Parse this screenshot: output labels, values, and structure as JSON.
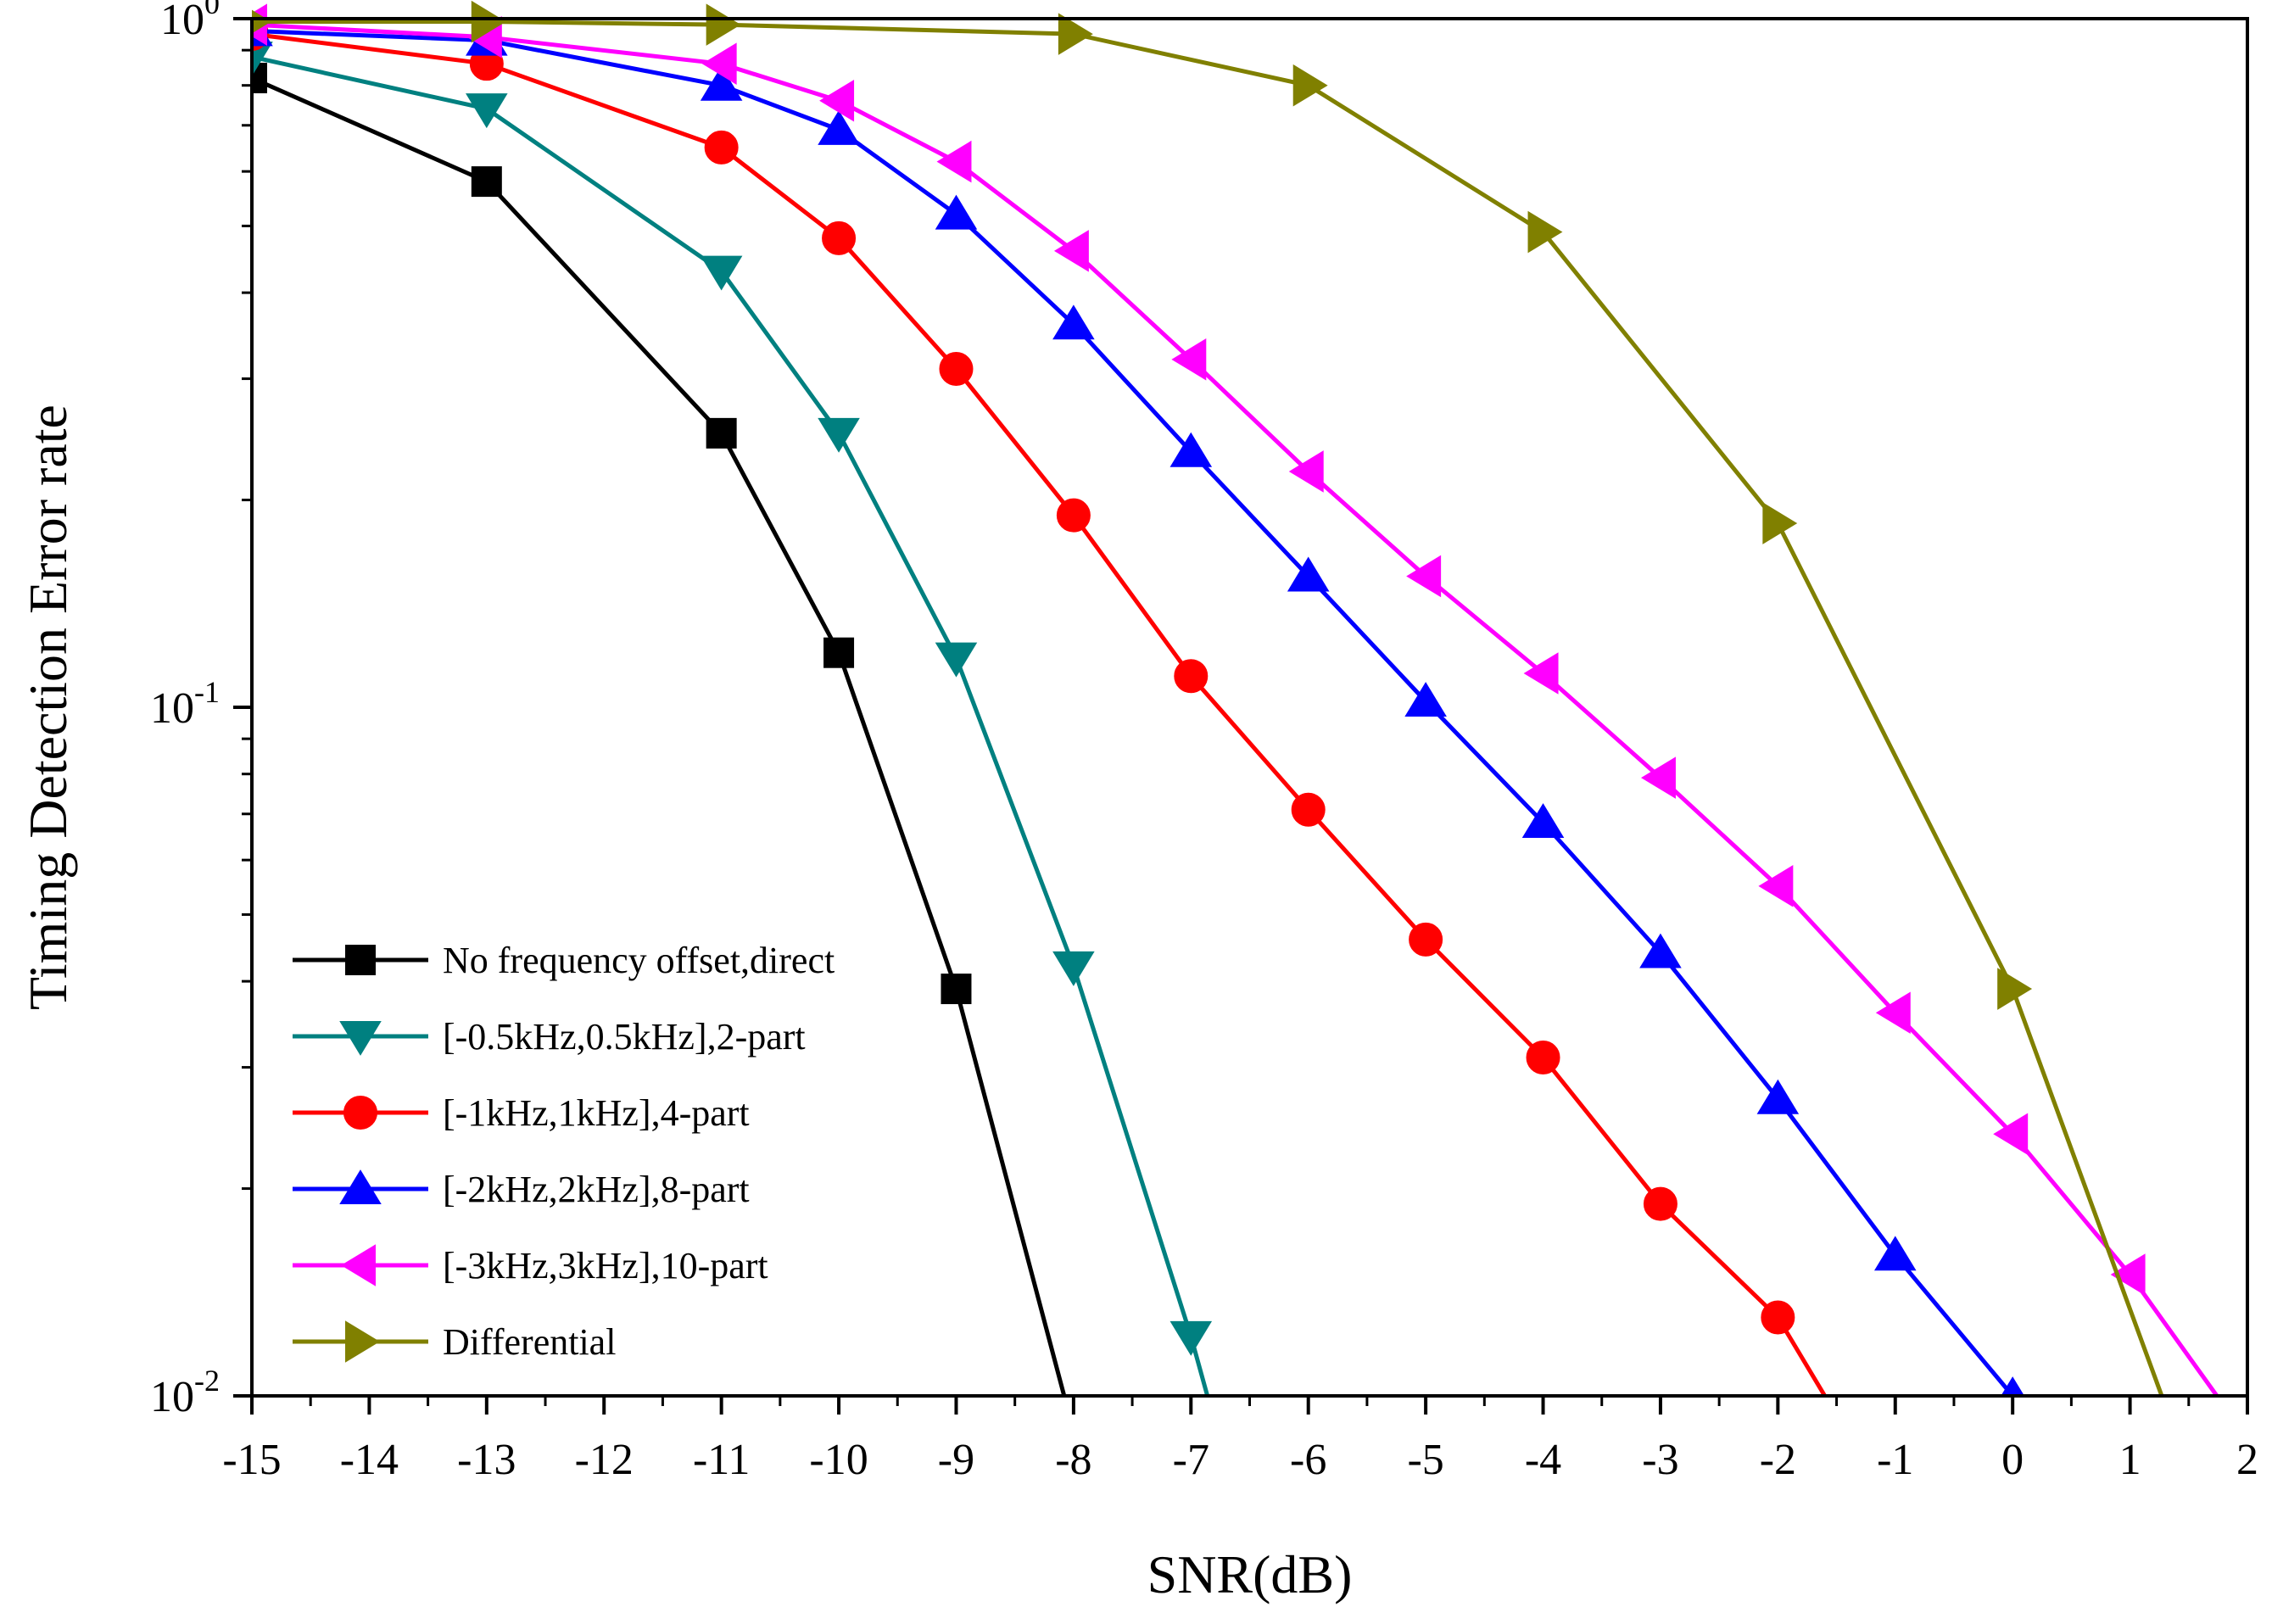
{
  "chart_data": {
    "type": "line",
    "title": "",
    "xlabel": "SNR(dB)",
    "ylabel": "Timing Detection Error rate",
    "xlim": [
      -15,
      2
    ],
    "ylim": [
      0.01,
      1
    ],
    "yscale": "log",
    "grid": false,
    "legend_position": "bottom-left",
    "x_ticks": [
      -15,
      -14,
      -13,
      -12,
      -11,
      -10,
      -9,
      -8,
      -7,
      -6,
      -5,
      -4,
      -3,
      -2,
      -1,
      0,
      1,
      2
    ],
    "x_tick_labels": [
      "-15",
      "-14",
      "-13",
      "-12",
      "-11",
      "-10",
      "-9",
      "-8",
      "-7",
      "-6",
      "-5",
      "-4",
      "-3",
      "-2",
      "-1",
      "0",
      "1",
      "2"
    ],
    "y_ticks": [
      {
        "value": 1,
        "base": "10",
        "exp": "0"
      },
      {
        "value": 0.1,
        "base": "10",
        "exp": "-1"
      },
      {
        "value": 0.01,
        "base": "10",
        "exp": "-2"
      }
    ],
    "series": [
      {
        "name": "No frequency offset,direct",
        "color": "#000000",
        "marker": "square",
        "x": [
          -15,
          -13,
          -11,
          -10,
          -9,
          -8.08
        ],
        "y": [
          0.82,
          0.58,
          0.25,
          0.12,
          0.039,
          0.01
        ]
      },
      {
        "name": "[-0.5kHz,0.5kHz],2-part",
        "color": "#008080",
        "marker": "triangle-down",
        "x": [
          -15,
          -13,
          -11,
          -10,
          -9,
          -8,
          -7,
          -6.86
        ],
        "y": [
          0.88,
          0.74,
          0.43,
          0.25,
          0.118,
          0.042,
          0.0122,
          0.01
        ]
      },
      {
        "name": "[-1kHz,1kHz],4-part",
        "color": "#ff0000",
        "marker": "circle",
        "x": [
          -15,
          -13,
          -11,
          -10,
          -9,
          -8,
          -7,
          -6,
          -5,
          -4,
          -3,
          -2,
          -1.6
        ],
        "y": [
          0.95,
          0.86,
          0.65,
          0.48,
          0.31,
          0.19,
          0.111,
          0.071,
          0.046,
          0.031,
          0.019,
          0.013,
          0.01
        ]
      },
      {
        "name": "[-2kHz,2kHz],8-part",
        "color": "#0000ff",
        "marker": "triangle-up",
        "x": [
          -15,
          -13,
          -11,
          -10,
          -9,
          -8,
          -7,
          -6,
          -5,
          -4,
          -3,
          -2,
          -1,
          0
        ],
        "y": [
          0.96,
          0.93,
          0.8,
          0.69,
          0.52,
          0.36,
          0.235,
          0.155,
          0.102,
          0.068,
          0.044,
          0.027,
          0.016,
          0.01
        ]
      },
      {
        "name": "[-3kHz,3kHz],10-part",
        "color": "#ff00ff",
        "marker": "triangle-left",
        "x": [
          -15,
          -13,
          -11,
          -10,
          -9,
          -8,
          -7,
          -6,
          -5,
          -4,
          -3,
          -2,
          -1,
          0,
          1,
          1.74
        ],
        "y": [
          0.98,
          0.94,
          0.86,
          0.76,
          0.62,
          0.46,
          0.32,
          0.22,
          0.155,
          0.112,
          0.079,
          0.055,
          0.036,
          0.024,
          0.015,
          0.01
        ]
      },
      {
        "name": "Differential",
        "color": "#808000",
        "marker": "triangle-right",
        "x": [
          -15,
          -13,
          -11,
          -8,
          -6,
          -4,
          -2,
          0,
          1.27
        ],
        "y": [
          0.99,
          0.99,
          0.98,
          0.95,
          0.8,
          0.49,
          0.185,
          0.039,
          0.01
        ]
      }
    ]
  }
}
